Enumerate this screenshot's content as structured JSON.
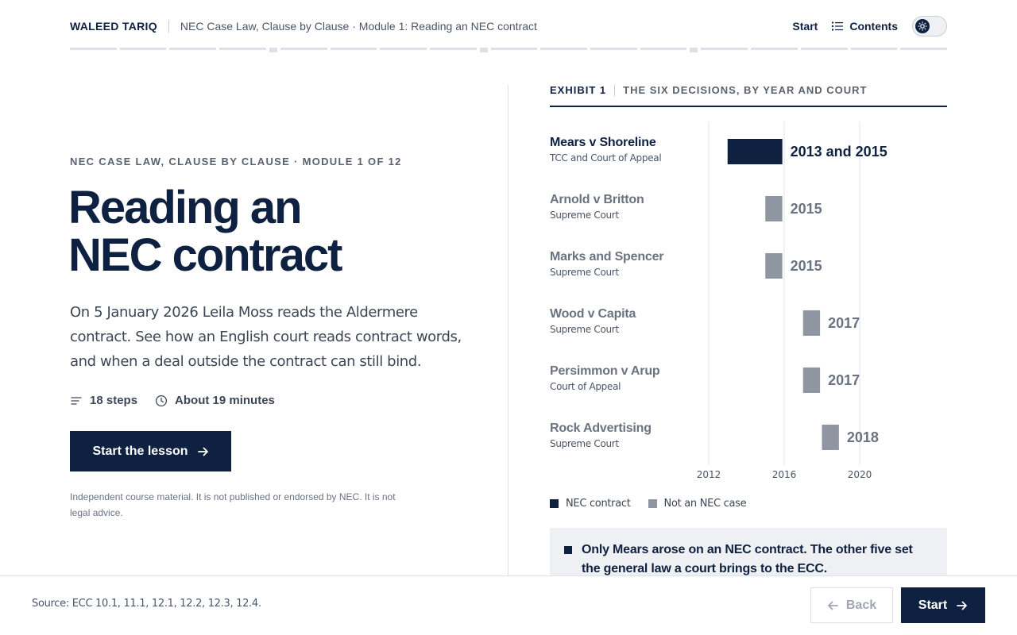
{
  "header": {
    "brand": "WALEED TARIQ",
    "breadcrumb": "NEC Case Law, Clause by Clause · Module 1: Reading an NEC contract",
    "start_link": "Start",
    "contents_link": "Contents"
  },
  "progress": {
    "segments": [
      "step",
      "step",
      "step",
      "step",
      "marker",
      "step",
      "step",
      "step",
      "step",
      "marker",
      "step",
      "step",
      "step",
      "step",
      "marker",
      "step",
      "step",
      "step",
      "step",
      "step"
    ]
  },
  "hero": {
    "eyebrow": "NEC CASE LAW, CLAUSE BY CLAUSE · MODULE 1 OF 12",
    "title_line1": "Reading an",
    "title_line2": "NEC contract",
    "lede": "On 5 January 2026 Leila Moss reads the Aldermere contract. See how an English court reads contract words, and when a deal outside the contract can still bind.",
    "steps": "18 steps",
    "duration": "About 19 minutes",
    "cta": "Start the lesson",
    "disclaimer": "Independent course material. It is not published or endorsed by NEC. It is not legal advice."
  },
  "exhibit": {
    "number": "EXHIBIT 1",
    "title": "THE SIX DECISIONS, BY YEAR AND COURT",
    "legend_nec": "NEC contract",
    "legend_other": "Not an NEC case",
    "callout": "Only Mears arose on an NEC contract. The other five set the general law a court brings to the ECC."
  },
  "chart_data": {
    "type": "bar",
    "orientation": "horizontal-range",
    "x_ticks": [
      2012,
      2016,
      2020
    ],
    "xlim": [
      2012,
      2025
    ],
    "rows": [
      {
        "case": "Mears v Shoreline",
        "court": "TCC and Court of Appeal",
        "start": 2013,
        "end": 2015.9,
        "label": "2013 and 2015",
        "nec": true
      },
      {
        "case": "Arnold v Britton",
        "court": "Supreme Court",
        "start": 2015,
        "end": 2015.9,
        "label": "2015",
        "nec": false
      },
      {
        "case": "Marks and Spencer",
        "court": "Supreme Court",
        "start": 2015,
        "end": 2015.9,
        "label": "2015",
        "nec": false
      },
      {
        "case": "Wood v Capita",
        "court": "Supreme Court",
        "start": 2017,
        "end": 2017.9,
        "label": "2017",
        "nec": false
      },
      {
        "case": "Persimmon v Arup",
        "court": "Court of Appeal",
        "start": 2017,
        "end": 2017.9,
        "label": "2017",
        "nec": false
      },
      {
        "case": "Rock Advertising",
        "court": "Supreme Court",
        "start": 2018,
        "end": 2018.9,
        "label": "2018",
        "nec": false
      }
    ],
    "colors": {
      "nec": "#0f2140",
      "other": "#8f96a1",
      "grid": "#e3e6eb"
    }
  },
  "footer": {
    "source": "Source: ECC 10.1, 11.1, 12.1, 12.2, 12.3, 12.4.",
    "back": "Back",
    "next": "Start"
  }
}
